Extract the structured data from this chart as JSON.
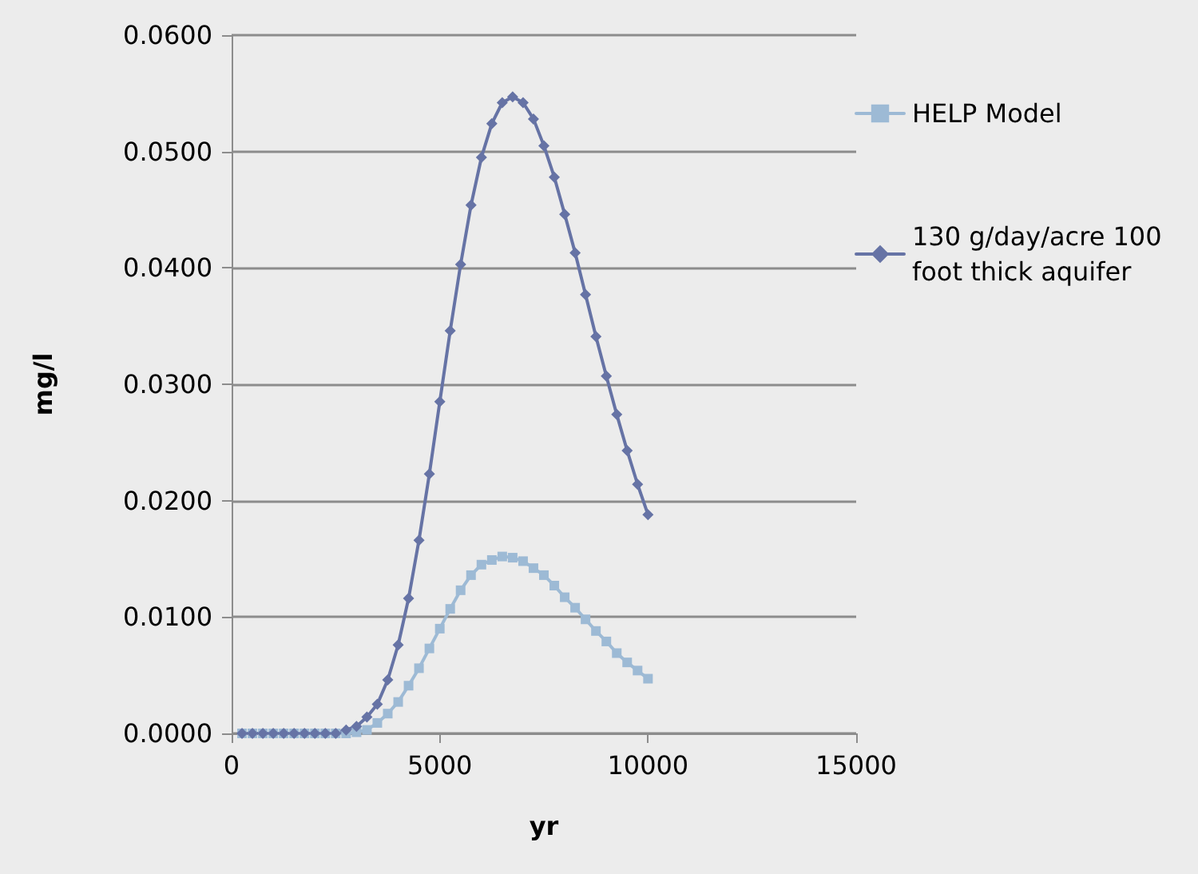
{
  "chart_data": {
    "type": "line",
    "xlabel": "yr",
    "ylabel": "mg/l",
    "x": [
      250,
      500,
      750,
      1000,
      1250,
      1500,
      1750,
      2000,
      2250,
      2500,
      2750,
      3000,
      3250,
      3500,
      3750,
      4000,
      4250,
      4500,
      4750,
      5000,
      5250,
      5500,
      5750,
      6000,
      6250,
      6500,
      6750,
      7000,
      7250,
      7500,
      7750,
      8000,
      8250,
      8500,
      8750,
      9000,
      9250,
      9500,
      9750,
      10000
    ],
    "series": [
      {
        "name": "HELP Model",
        "color": "#9dbad5",
        "marker": "square",
        "values": [
          0,
          0,
          0,
          0,
          0,
          0,
          0,
          0,
          0,
          0,
          0,
          0.0001,
          0.0003,
          0.0009,
          0.0017,
          0.0027,
          0.0041,
          0.0056,
          0.0073,
          0.009,
          0.0107,
          0.0123,
          0.0136,
          0.0145,
          0.0149,
          0.0152,
          0.0151,
          0.0148,
          0.0142,
          0.0136,
          0.0127,
          0.0117,
          0.0108,
          0.0098,
          0.0088,
          0.0079,
          0.0069,
          0.0061,
          0.0054,
          0.0047
        ]
      },
      {
        "name": "130 g/day/acre 100 foot thick aquifer",
        "color": "#6673a5",
        "marker": "diamond",
        "values": [
          0,
          0,
          0,
          0,
          0,
          0,
          0,
          0,
          0,
          0,
          0.0003,
          0.0006,
          0.0014,
          0.0025,
          0.0046,
          0.0076,
          0.0116,
          0.0166,
          0.0223,
          0.0285,
          0.0346,
          0.0403,
          0.0454,
          0.0495,
          0.0524,
          0.0542,
          0.0547,
          0.0542,
          0.0528,
          0.0505,
          0.0478,
          0.0446,
          0.0413,
          0.0377,
          0.0341,
          0.0307,
          0.0274,
          0.0243,
          0.0214,
          0.0188
        ]
      }
    ],
    "xlim": [
      0,
      15000
    ],
    "xticks": [
      0,
      5000,
      10000,
      15000
    ],
    "ylim": [
      0,
      0.06
    ],
    "yticks": [
      {
        "value": 0,
        "label": "0.0000"
      },
      {
        "value": 0.01,
        "label": "0.0100"
      },
      {
        "value": 0.02,
        "label": "0.0200"
      },
      {
        "value": 0.03,
        "label": "0.0300"
      },
      {
        "value": 0.04,
        "label": "0.0400"
      },
      {
        "value": 0.05,
        "label": "0.0500"
      },
      {
        "value": 0.06,
        "label": "0.0600"
      }
    ],
    "grid": "y",
    "legend": "right"
  }
}
